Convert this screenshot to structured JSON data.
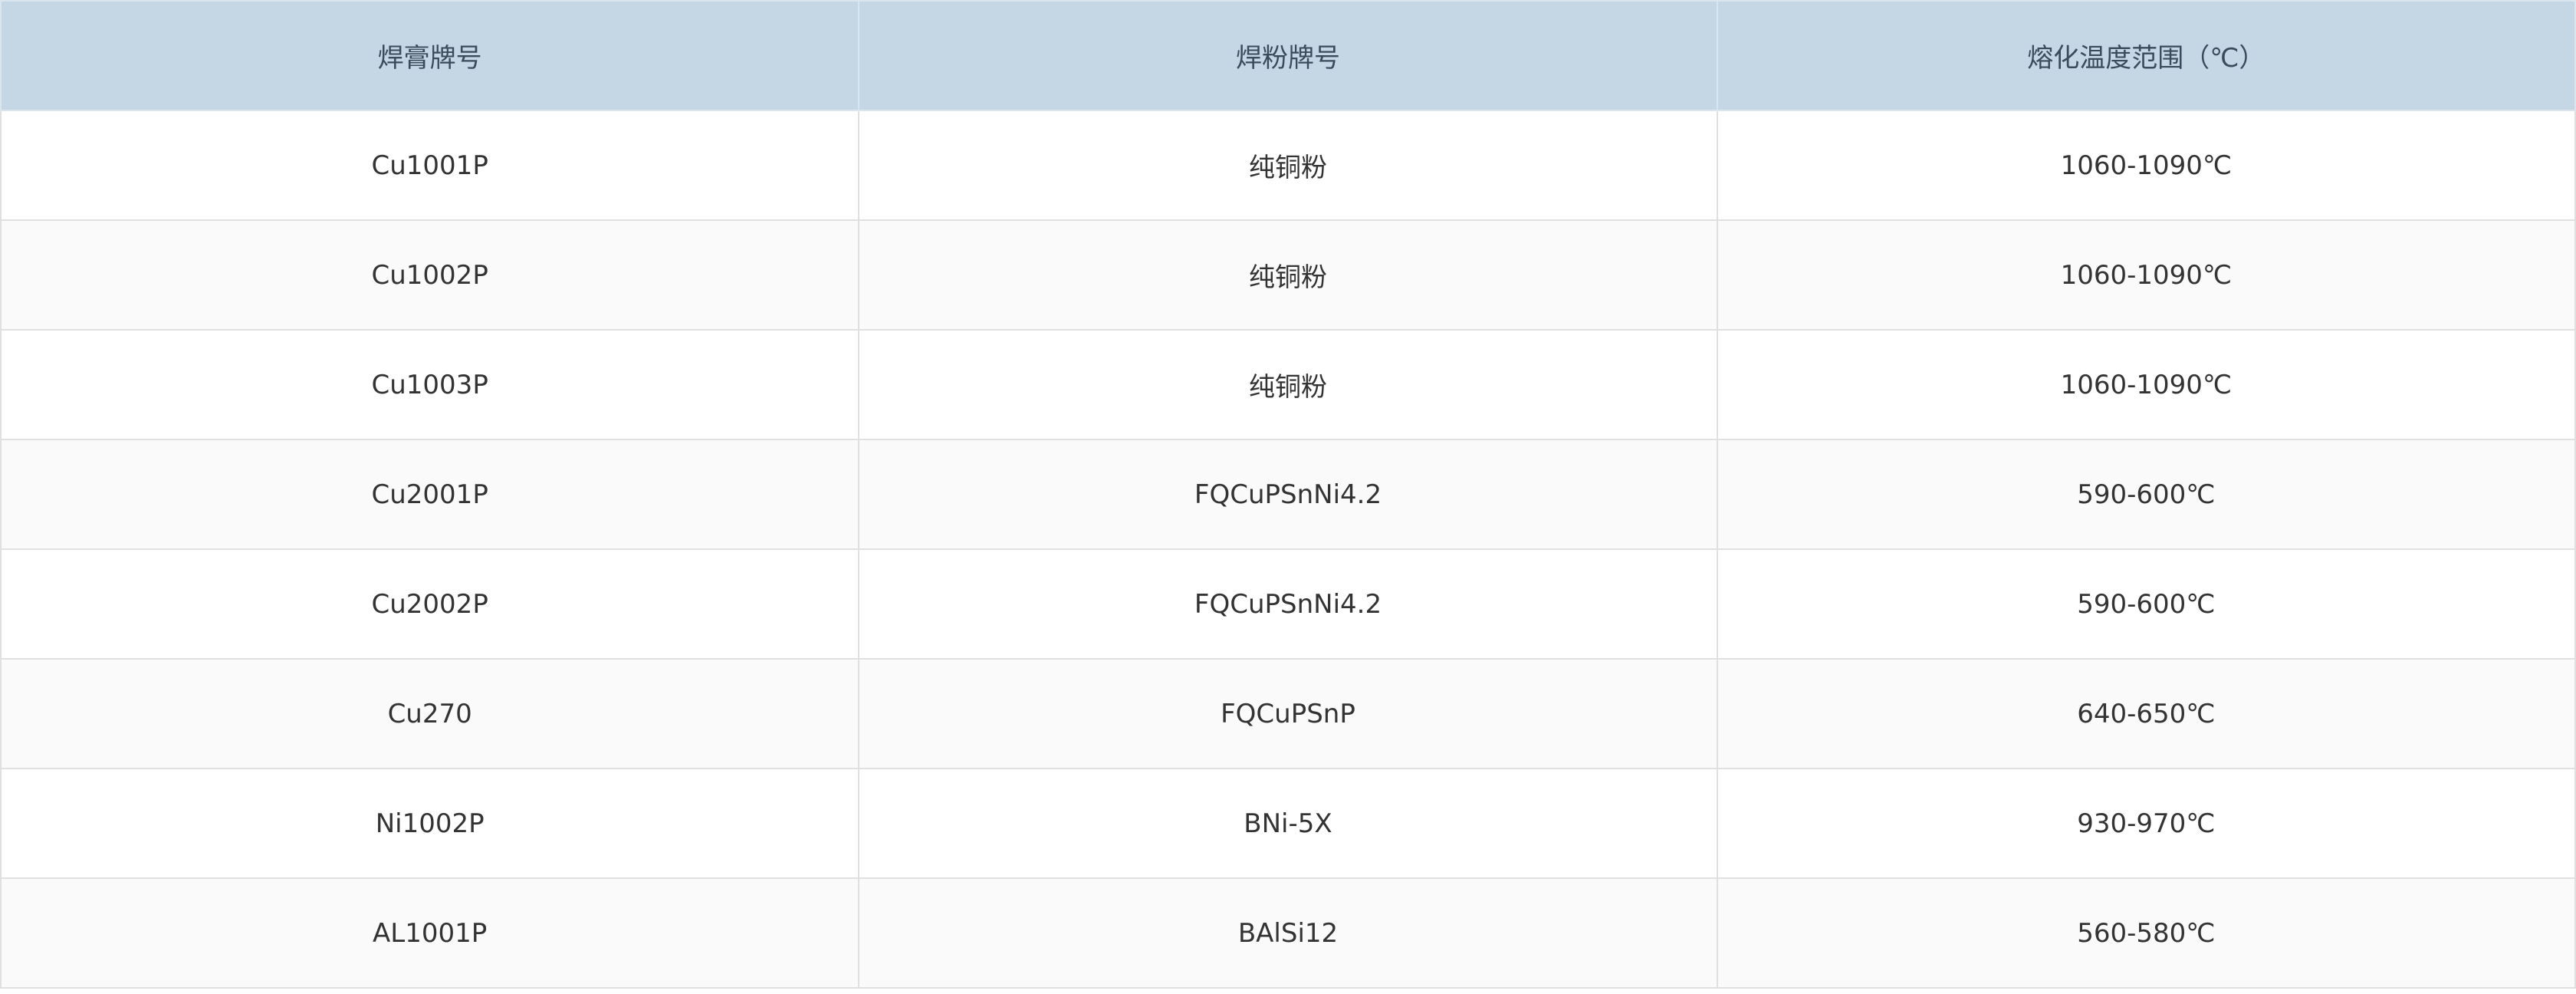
{
  "table": {
    "headers": [
      "焊膏牌号",
      "焊粉牌号",
      "熔化温度范围（℃）"
    ],
    "rows": [
      [
        "Cu1001P",
        "纯铜粉",
        "1060-1090℃"
      ],
      [
        "Cu1002P",
        "纯铜粉",
        "1060-1090℃"
      ],
      [
        "Cu1003P",
        "纯铜粉",
        "1060-1090℃"
      ],
      [
        "Cu2001P",
        "FQCuPSnNi4.2",
        "590-600℃"
      ],
      [
        "Cu2002P",
        "FQCuPSnNi4.2",
        "590-600℃"
      ],
      [
        "Cu270",
        "FQCuPSnP",
        "640-650℃"
      ],
      [
        "Ni1002P",
        "BNi-5X",
        "930-970℃"
      ],
      [
        "AL1001P",
        "BAlSi12",
        "560-580℃"
      ]
    ]
  },
  "colors": {
    "header_bg": "#c5d7e4",
    "header_text": "#3b4b5c",
    "row_alt_bg": "#fafafa",
    "border": "#e0e0e0"
  }
}
